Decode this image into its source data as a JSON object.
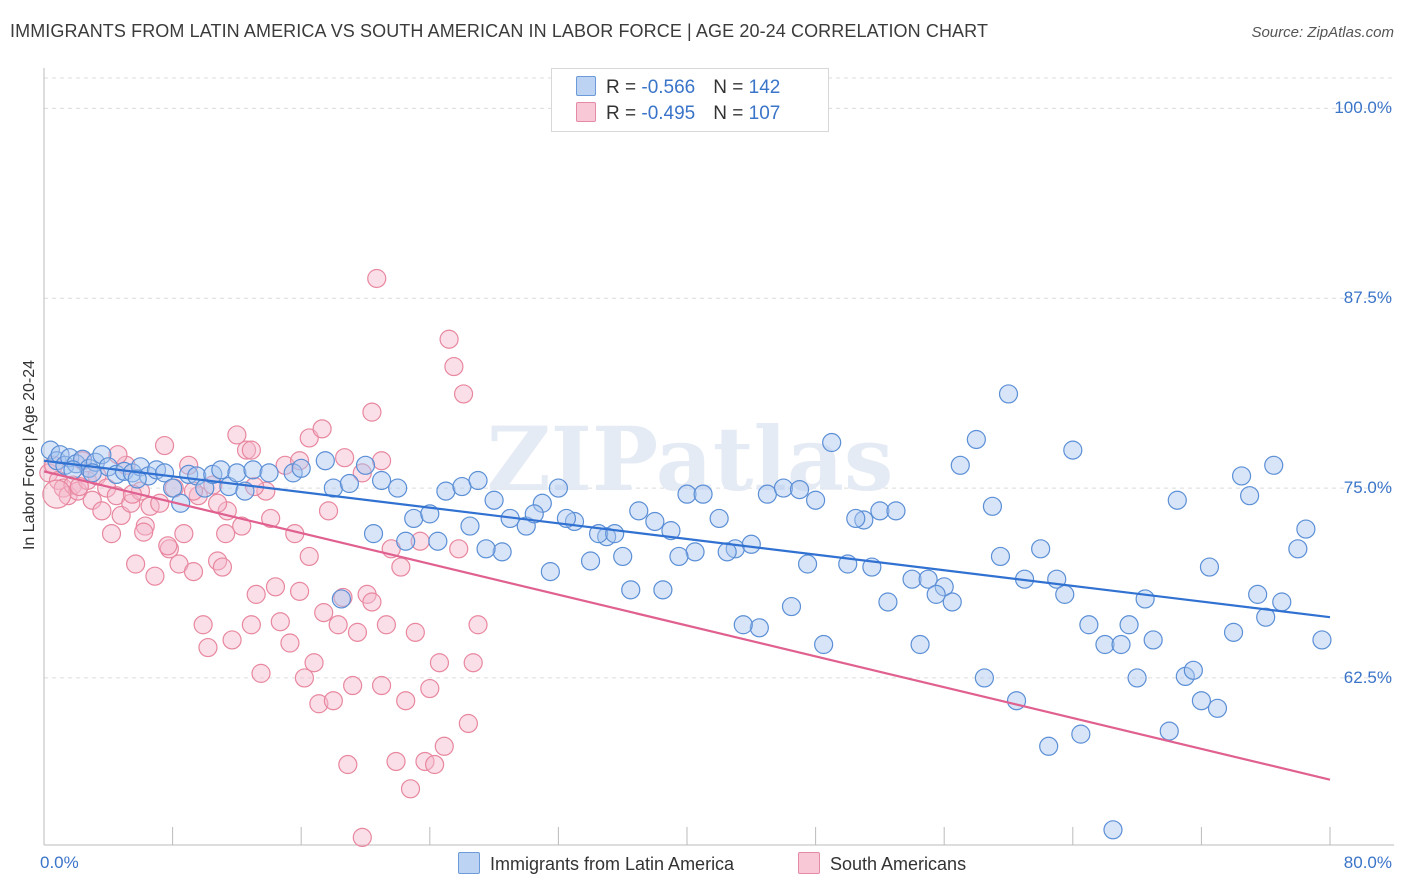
{
  "title": "IMMIGRANTS FROM LATIN AMERICA VS SOUTH AMERICAN IN LABOR FORCE | AGE 20-24 CORRELATION CHART",
  "source": "Source: ZipAtlas.com",
  "legend": {
    "row1": {
      "r_label": "R = ",
      "r_value": "-0.566",
      "n_label": "N = ",
      "n_value": "142"
    },
    "row2": {
      "r_label": "R = ",
      "r_value": "-0.495",
      "n_label": "N = ",
      "n_value": "107"
    }
  },
  "colors": {
    "blue_fill": "#a9c6f0",
    "blue_stroke": "#5b8fd6",
    "blue_line": "#3071d1",
    "pink_fill": "#f5b8cb",
    "pink_stroke": "#e8879f",
    "pink_line": "#e0608f",
    "tick_text": "#3a74c9",
    "grid": "#dcdcdc"
  },
  "chart_data": {
    "type": "scatter",
    "title": "IMMIGRANTS FROM LATIN AMERICA VS SOUTH AMERICAN IN LABOR FORCE | AGE 20-24 CORRELATION CHART",
    "xlabel": "",
    "ylabel": "In Labor Force | Age 20-24",
    "xlim": [
      0,
      80
    ],
    "ylim": [
      51.5,
      102
    ],
    "x_tick_labels": [
      "0.0%",
      "80.0%"
    ],
    "y_ticks": [
      100,
      87.5,
      75,
      62.5
    ],
    "y_tick_labels": [
      "100.0%",
      "87.5%",
      "75.0%",
      "62.5%"
    ],
    "grid": "horizontal dashed",
    "legend_position": "top-center",
    "series": [
      {
        "name": "Immigrants from Latin America",
        "color": "blue",
        "trend": {
          "x": [
            0,
            80
          ],
          "y": [
            76.8,
            66.5
          ]
        },
        "points": [
          [
            0.4,
            77.5
          ],
          [
            0.8,
            76.8
          ],
          [
            1.0,
            77.2
          ],
          [
            1.3,
            76.5
          ],
          [
            1.6,
            77.0
          ],
          [
            2.0,
            76.6
          ],
          [
            2.4,
            76.9
          ],
          [
            2.8,
            76.3
          ],
          [
            3.2,
            76.7
          ],
          [
            3.6,
            77.2
          ],
          [
            4.0,
            76.4
          ],
          [
            4.5,
            75.9
          ],
          [
            5.0,
            76.1
          ],
          [
            5.5,
            76.0
          ],
          [
            6.0,
            76.4
          ],
          [
            6.5,
            75.8
          ],
          [
            7.0,
            76.2
          ],
          [
            7.5,
            76.0
          ],
          [
            8.0,
            75.0
          ],
          [
            8.5,
            74.0
          ],
          [
            9.0,
            75.9
          ],
          [
            9.5,
            75.8
          ],
          [
            10.0,
            75.0
          ],
          [
            10.5,
            75.9
          ],
          [
            11.0,
            76.2
          ],
          [
            11.5,
            75.1
          ],
          [
            12.0,
            76.0
          ],
          [
            12.5,
            74.8
          ],
          [
            13.0,
            76.2
          ],
          [
            14.0,
            76.0
          ],
          [
            15.5,
            76.0
          ],
          [
            16.0,
            76.3
          ],
          [
            17.5,
            76.8
          ],
          [
            18.0,
            75.0
          ],
          [
            19.0,
            75.3
          ],
          [
            20.0,
            76.5
          ],
          [
            21.0,
            75.5
          ],
          [
            22.0,
            75.0
          ],
          [
            23.0,
            73.0
          ],
          [
            24.0,
            73.3
          ],
          [
            25.0,
            74.8
          ],
          [
            26.0,
            75.1
          ],
          [
            27.0,
            75.5
          ],
          [
            28.0,
            74.2
          ],
          [
            29.0,
            73.0
          ],
          [
            30.0,
            72.5
          ],
          [
            31.0,
            74.0
          ],
          [
            32.0,
            75.0
          ],
          [
            33.0,
            72.8
          ],
          [
            34.0,
            70.2
          ],
          [
            35.0,
            71.8
          ],
          [
            36.0,
            70.5
          ],
          [
            37.0,
            73.5
          ],
          [
            38.0,
            72.8
          ],
          [
            39.0,
            72.2
          ],
          [
            40.0,
            74.6
          ],
          [
            41.0,
            74.6
          ],
          [
            42.0,
            73.0
          ],
          [
            43.0,
            71.0
          ],
          [
            44.0,
            71.3
          ],
          [
            45.0,
            74.6
          ],
          [
            46.0,
            75.0
          ],
          [
            47.0,
            74.9
          ],
          [
            48.0,
            74.2
          ],
          [
            49.0,
            78.0
          ],
          [
            50.0,
            70.0
          ],
          [
            51.0,
            72.9
          ],
          [
            52.0,
            73.5
          ],
          [
            53.0,
            73.5
          ],
          [
            54.0,
            69.0
          ],
          [
            55.0,
            69.0
          ],
          [
            56.0,
            68.5
          ],
          [
            57.0,
            76.5
          ],
          [
            58.0,
            78.2
          ],
          [
            59.0,
            73.8
          ],
          [
            60.0,
            81.2
          ],
          [
            61.0,
            69.0
          ],
          [
            62.0,
            71.0
          ],
          [
            63.0,
            69.0
          ],
          [
            64.0,
            77.5
          ],
          [
            65.0,
            66.0
          ],
          [
            66.0,
            64.7
          ],
          [
            67.0,
            64.7
          ],
          [
            68.0,
            62.5
          ],
          [
            69.0,
            65.0
          ],
          [
            70.0,
            59.0
          ],
          [
            71.0,
            62.6
          ],
          [
            72.0,
            61.0
          ],
          [
            73.0,
            60.5
          ],
          [
            74.0,
            65.5
          ],
          [
            75.0,
            74.5
          ],
          [
            76.0,
            66.5
          ],
          [
            77.0,
            67.5
          ],
          [
            78.0,
            71.0
          ],
          [
            20.5,
            72.0
          ],
          [
            24.5,
            71.5
          ],
          [
            26.5,
            72.5
          ],
          [
            28.5,
            70.8
          ],
          [
            30.5,
            73.3
          ],
          [
            32.5,
            73.0
          ],
          [
            34.5,
            72.0
          ],
          [
            36.5,
            68.3
          ],
          [
            38.5,
            68.3
          ],
          [
            40.5,
            70.8
          ],
          [
            42.5,
            70.8
          ],
          [
            44.5,
            65.8
          ],
          [
            46.5,
            67.2
          ],
          [
            48.5,
            64.7
          ],
          [
            50.5,
            73.0
          ],
          [
            52.5,
            67.5
          ],
          [
            54.5,
            64.7
          ],
          [
            56.5,
            67.5
          ],
          [
            58.5,
            62.5
          ],
          [
            60.5,
            61.0
          ],
          [
            62.5,
            58.0
          ],
          [
            64.5,
            58.8
          ],
          [
            66.5,
            52.5
          ],
          [
            68.5,
            67.7
          ],
          [
            70.5,
            74.2
          ],
          [
            72.5,
            69.8
          ],
          [
            74.5,
            75.8
          ],
          [
            76.5,
            76.5
          ],
          [
            78.5,
            72.3
          ],
          [
            22.5,
            71.5
          ],
          [
            27.5,
            71.0
          ],
          [
            31.5,
            69.5
          ],
          [
            35.5,
            72.0
          ],
          [
            39.5,
            70.5
          ],
          [
            43.5,
            66.0
          ],
          [
            47.5,
            70.0
          ],
          [
            51.5,
            69.8
          ],
          [
            55.5,
            68.0
          ],
          [
            59.5,
            70.5
          ],
          [
            63.5,
            68.0
          ],
          [
            67.5,
            66.0
          ],
          [
            71.5,
            63.0
          ],
          [
            75.5,
            68.0
          ],
          [
            79.5,
            65.0
          ],
          [
            18.5,
            67.7
          ],
          [
            1.8,
            76.2
          ],
          [
            3.0,
            76.0
          ],
          [
            5.8,
            75.6
          ]
        ]
      },
      {
        "name": "South Americans",
        "color": "pink",
        "trend": {
          "x": [
            0,
            80
          ],
          "y": [
            76.1,
            55.8
          ]
        },
        "points": [
          [
            0.3,
            76.0
          ],
          [
            0.6,
            76.5
          ],
          [
            0.9,
            75.5
          ],
          [
            1.2,
            75.0
          ],
          [
            1.5,
            74.5
          ],
          [
            1.8,
            75.2
          ],
          [
            2.1,
            74.8
          ],
          [
            2.4,
            76.8
          ],
          [
            2.7,
            75.5
          ],
          [
            3.0,
            74.2
          ],
          [
            3.3,
            75.8
          ],
          [
            3.6,
            73.5
          ],
          [
            3.9,
            75.0
          ],
          [
            4.2,
            72.0
          ],
          [
            4.5,
            74.5
          ],
          [
            4.8,
            73.2
          ],
          [
            5.1,
            76.5
          ],
          [
            5.4,
            74.0
          ],
          [
            5.7,
            70.0
          ],
          [
            6.0,
            74.8
          ],
          [
            6.3,
            72.5
          ],
          [
            6.6,
            73.8
          ],
          [
            6.9,
            69.2
          ],
          [
            7.2,
            74.0
          ],
          [
            7.5,
            77.8
          ],
          [
            7.8,
            71.0
          ],
          [
            8.1,
            75.0
          ],
          [
            8.4,
            70.0
          ],
          [
            8.7,
            72.0
          ],
          [
            9.0,
            76.5
          ],
          [
            9.3,
            69.5
          ],
          [
            9.6,
            74.5
          ],
          [
            9.9,
            66.0
          ],
          [
            10.2,
            64.5
          ],
          [
            10.5,
            75.2
          ],
          [
            10.8,
            70.2
          ],
          [
            11.1,
            69.8
          ],
          [
            11.4,
            73.5
          ],
          [
            11.7,
            65.0
          ],
          [
            12.0,
            78.5
          ],
          [
            12.3,
            72.5
          ],
          [
            12.6,
            77.5
          ],
          [
            12.9,
            66.0
          ],
          [
            13.2,
            68.0
          ],
          [
            13.5,
            62.8
          ],
          [
            13.8,
            74.8
          ],
          [
            14.1,
            73.0
          ],
          [
            14.4,
            68.5
          ],
          [
            14.7,
            66.2
          ],
          [
            15.0,
            76.5
          ],
          [
            15.3,
            64.8
          ],
          [
            15.6,
            72.0
          ],
          [
            15.9,
            68.2
          ],
          [
            16.2,
            62.5
          ],
          [
            16.5,
            70.5
          ],
          [
            16.8,
            63.5
          ],
          [
            17.1,
            60.8
          ],
          [
            17.4,
            66.8
          ],
          [
            17.7,
            73.5
          ],
          [
            18.0,
            61.0
          ],
          [
            18.3,
            66.0
          ],
          [
            18.6,
            67.8
          ],
          [
            18.9,
            56.8
          ],
          [
            19.2,
            62.0
          ],
          [
            19.5,
            65.5
          ],
          [
            19.8,
            52.0
          ],
          [
            20.1,
            68.0
          ],
          [
            20.4,
            67.5
          ],
          [
            20.7,
            88.8
          ],
          [
            21.0,
            62.0
          ],
          [
            21.3,
            66.0
          ],
          [
            21.6,
            71.0
          ],
          [
            21.9,
            57.0
          ],
          [
            22.2,
            69.8
          ],
          [
            22.5,
            61.0
          ],
          [
            22.8,
            55.2
          ],
          [
            23.1,
            65.5
          ],
          [
            23.4,
            71.5
          ],
          [
            23.7,
            57.0
          ],
          [
            24.0,
            61.8
          ],
          [
            24.3,
            56.8
          ],
          [
            24.6,
            63.5
          ],
          [
            24.9,
            58.0
          ],
          [
            25.2,
            84.8
          ],
          [
            25.5,
            83.0
          ],
          [
            25.8,
            71.0
          ],
          [
            26.1,
            81.2
          ],
          [
            26.4,
            59.5
          ],
          [
            26.7,
            63.5
          ],
          [
            27.0,
            66.0
          ],
          [
            4.6,
            77.2
          ],
          [
            12.9,
            77.5
          ],
          [
            15.9,
            76.8
          ],
          [
            16.5,
            78.3
          ],
          [
            17.3,
            78.9
          ],
          [
            18.7,
            77.0
          ],
          [
            19.8,
            76.0
          ],
          [
            20.4,
            80.0
          ],
          [
            21.0,
            76.8
          ],
          [
            13.1,
            75.1
          ],
          [
            2.2,
            75.1
          ],
          [
            5.5,
            74.6
          ],
          [
            6.2,
            72.1
          ],
          [
            7.7,
            71.2
          ],
          [
            9.3,
            74.8
          ],
          [
            10.8,
            74.0
          ],
          [
            11.3,
            72.0
          ]
        ]
      }
    ]
  }
}
